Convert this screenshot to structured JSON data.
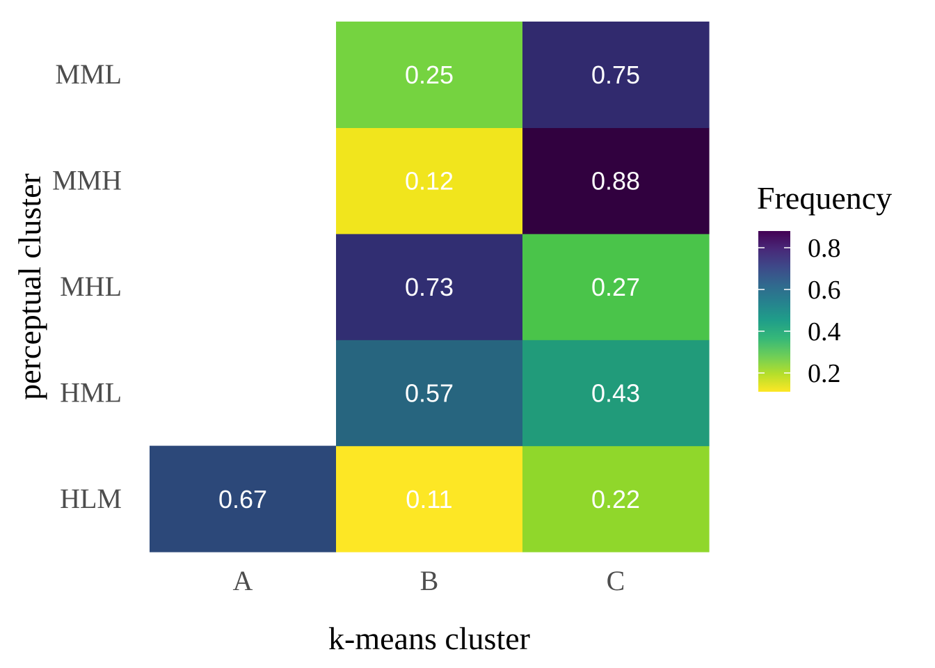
{
  "chart_data": {
    "type": "heatmap",
    "xlabel": "k-means cluster",
    "ylabel": "perceptual cluster",
    "x_categories": [
      "A",
      "B",
      "C"
    ],
    "y_categories": [
      "HLM",
      "HML",
      "MHL",
      "MMH",
      "MML"
    ],
    "cells": [
      {
        "x": "A",
        "y": "HLM",
        "value": 0.67,
        "label": "0.67"
      },
      {
        "x": "B",
        "y": "HLM",
        "value": 0.11,
        "label": "0.11"
      },
      {
        "x": "C",
        "y": "HLM",
        "value": 0.22,
        "label": "0.22"
      },
      {
        "x": "B",
        "y": "HML",
        "value": 0.57,
        "label": "0.57"
      },
      {
        "x": "C",
        "y": "HML",
        "value": 0.43,
        "label": "0.43"
      },
      {
        "x": "B",
        "y": "MHL",
        "value": 0.73,
        "label": "0.73"
      },
      {
        "x": "C",
        "y": "MHL",
        "value": 0.27,
        "label": "0.27"
      },
      {
        "x": "B",
        "y": "MMH",
        "value": 0.12,
        "label": "0.12"
      },
      {
        "x": "C",
        "y": "MMH",
        "value": 0.88,
        "label": "0.88"
      },
      {
        "x": "B",
        "y": "MML",
        "value": 0.25,
        "label": "0.25"
      },
      {
        "x": "C",
        "y": "MML",
        "value": 0.75,
        "label": "0.75"
      }
    ],
    "legend": {
      "title": "Frequency",
      "position": "right",
      "range": [
        0.11,
        0.88
      ],
      "ticks": [
        0.2,
        0.4,
        0.6,
        0.8
      ],
      "tick_labels": [
        "0.2",
        "0.4",
        "0.6",
        "0.8"
      ],
      "palette": "viridis-reversed"
    },
    "grid": false
  },
  "colors": {
    "viridis": [
      "#fde725",
      "#b5de2b",
      "#6ece58",
      "#35b779",
      "#1f9e89",
      "#26828e",
      "#31688e",
      "#3e4989",
      "#482878",
      "#440154"
    ],
    "cells": {
      "A-HLM": "#2c4879",
      "B-HLM": "#fde725",
      "C-HLM": "#90d72b",
      "B-HML": "#27657f",
      "C-HML": "#219b7a",
      "B-MHL": "#312e72",
      "C-MHL": "#4ac44a",
      "B-MMH": "#f1e51d",
      "C-MMH": "#31013f",
      "B-MML": "#75d340",
      "C-MML": "#312a6e"
    }
  }
}
